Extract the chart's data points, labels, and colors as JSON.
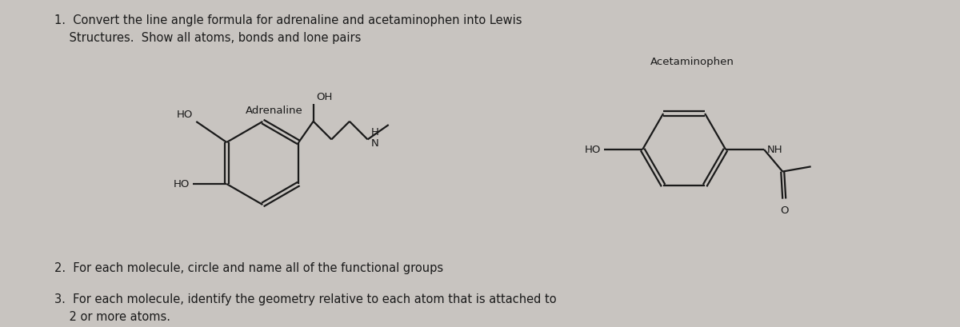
{
  "bg_color": "#c8c4c0",
  "panel_bg": "#d4d0cc",
  "text_color": "#1a1a1a",
  "line_color": "#1a1a1a",
  "left_bar_color": "#3a3a3a",
  "title_text": "1.  Convert the line angle formula for adrenaline and acetaminophen into Lewis\n    Structures.  Show all atoms, bonds and lone pairs",
  "item2_text": "2.  For each molecule, circle and name all of the functional groups",
  "item3_text": "3.  For each molecule, identify the geometry relative to each atom that is attached to\n    2 or more atoms.",
  "adrenaline_label": "Adrenaline",
  "acetaminophen_label": "Acetaminophen",
  "figsize": [
    12.0,
    4.1
  ],
  "dpi": 100
}
